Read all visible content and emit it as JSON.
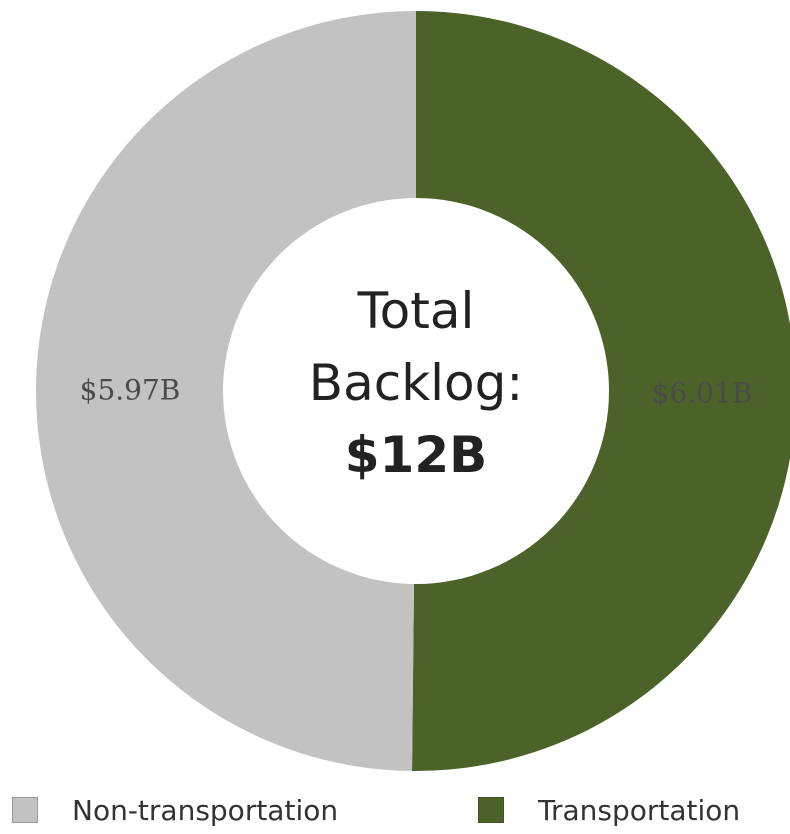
{
  "chart_data": {
    "type": "pie",
    "donut": true,
    "categories": [
      "Non-transportation",
      "Transportation"
    ],
    "values": [
      5.97,
      6.01
    ],
    "value_labels": [
      "$5.97B",
      "$6.01B"
    ],
    "colors": [
      "#c2c2c2",
      "#4b6329"
    ],
    "center_text": {
      "line1": "Total",
      "line2": "Backlog:",
      "value": "$12B"
    },
    "legend": {
      "placement": "bottom",
      "entries": [
        "Non-transportation",
        "Transportation"
      ]
    }
  }
}
